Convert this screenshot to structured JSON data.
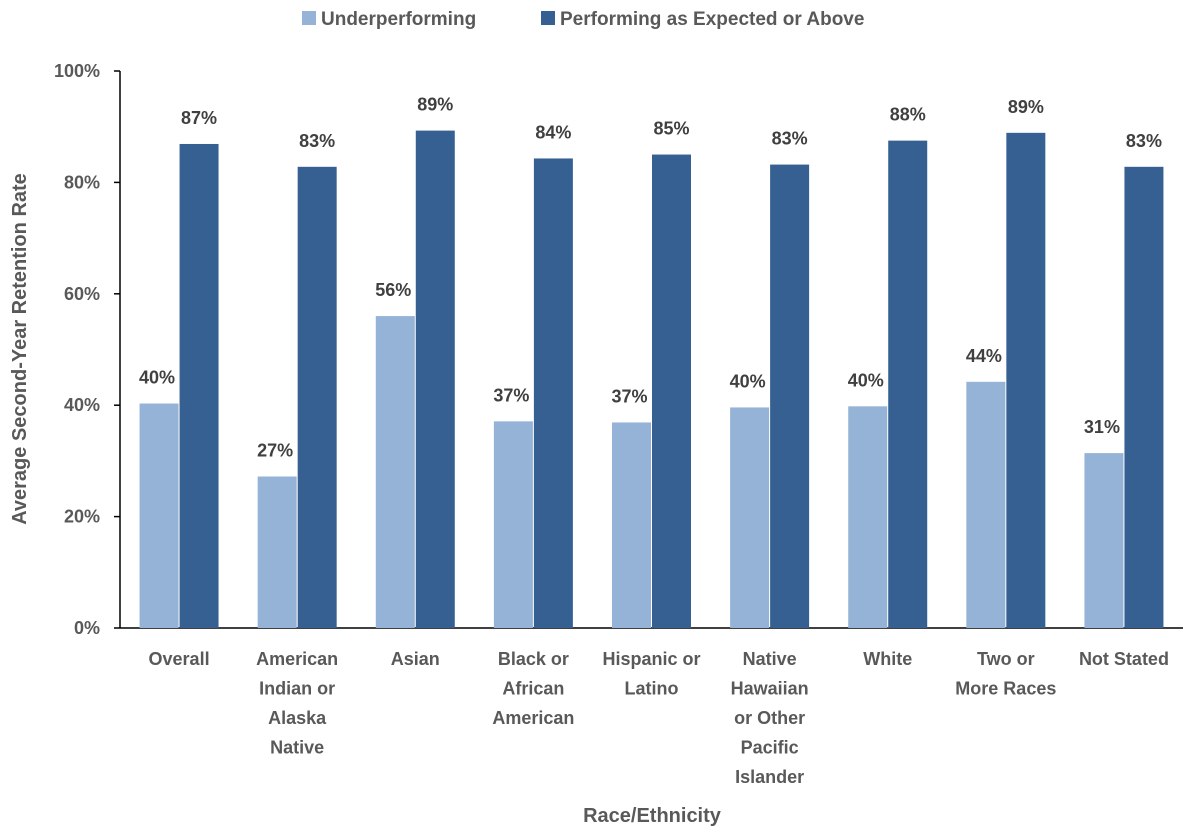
{
  "chart_data": {
    "type": "bar",
    "title": "",
    "xlabel": "Race/Ethnicity",
    "ylabel": "Average Second-Year Retention Rate",
    "ylim": [
      0,
      100
    ],
    "yticks": [
      "0%",
      "20%",
      "40%",
      "60%",
      "80%",
      "100%"
    ],
    "legend_position": "top",
    "grid": false,
    "categories": [
      [
        "Overall"
      ],
      [
        "American",
        "Indian or",
        "Alaska",
        "Native"
      ],
      [
        "Asian"
      ],
      [
        "Black or",
        "African",
        "American"
      ],
      [
        "Hispanic or",
        "Latino"
      ],
      [
        "Native",
        "Hawaiian",
        "or Other",
        "Pacific",
        "Islander"
      ],
      [
        "White"
      ],
      [
        "Two or",
        "More Races"
      ],
      [
        "Not Stated"
      ]
    ],
    "series": [
      {
        "name": "Underperforming",
        "color": "#95B3D7",
        "values": [
          40.3,
          27.2,
          56.0,
          37.1,
          36.9,
          39.6,
          39.8,
          44.2,
          31.4
        ],
        "labels": [
          "40%",
          "27%",
          "56%",
          "37%",
          "37%",
          "40%",
          "40%",
          "44%",
          "31%"
        ]
      },
      {
        "name": "Performing as Expected or Above",
        "color": "#366092",
        "values": [
          86.9,
          82.8,
          89.3,
          84.3,
          85.0,
          83.2,
          87.5,
          88.9,
          82.8
        ],
        "labels": [
          "87%",
          "83%",
          "89%",
          "84%",
          "85%",
          "83%",
          "88%",
          "89%",
          "83%"
        ]
      }
    ]
  }
}
